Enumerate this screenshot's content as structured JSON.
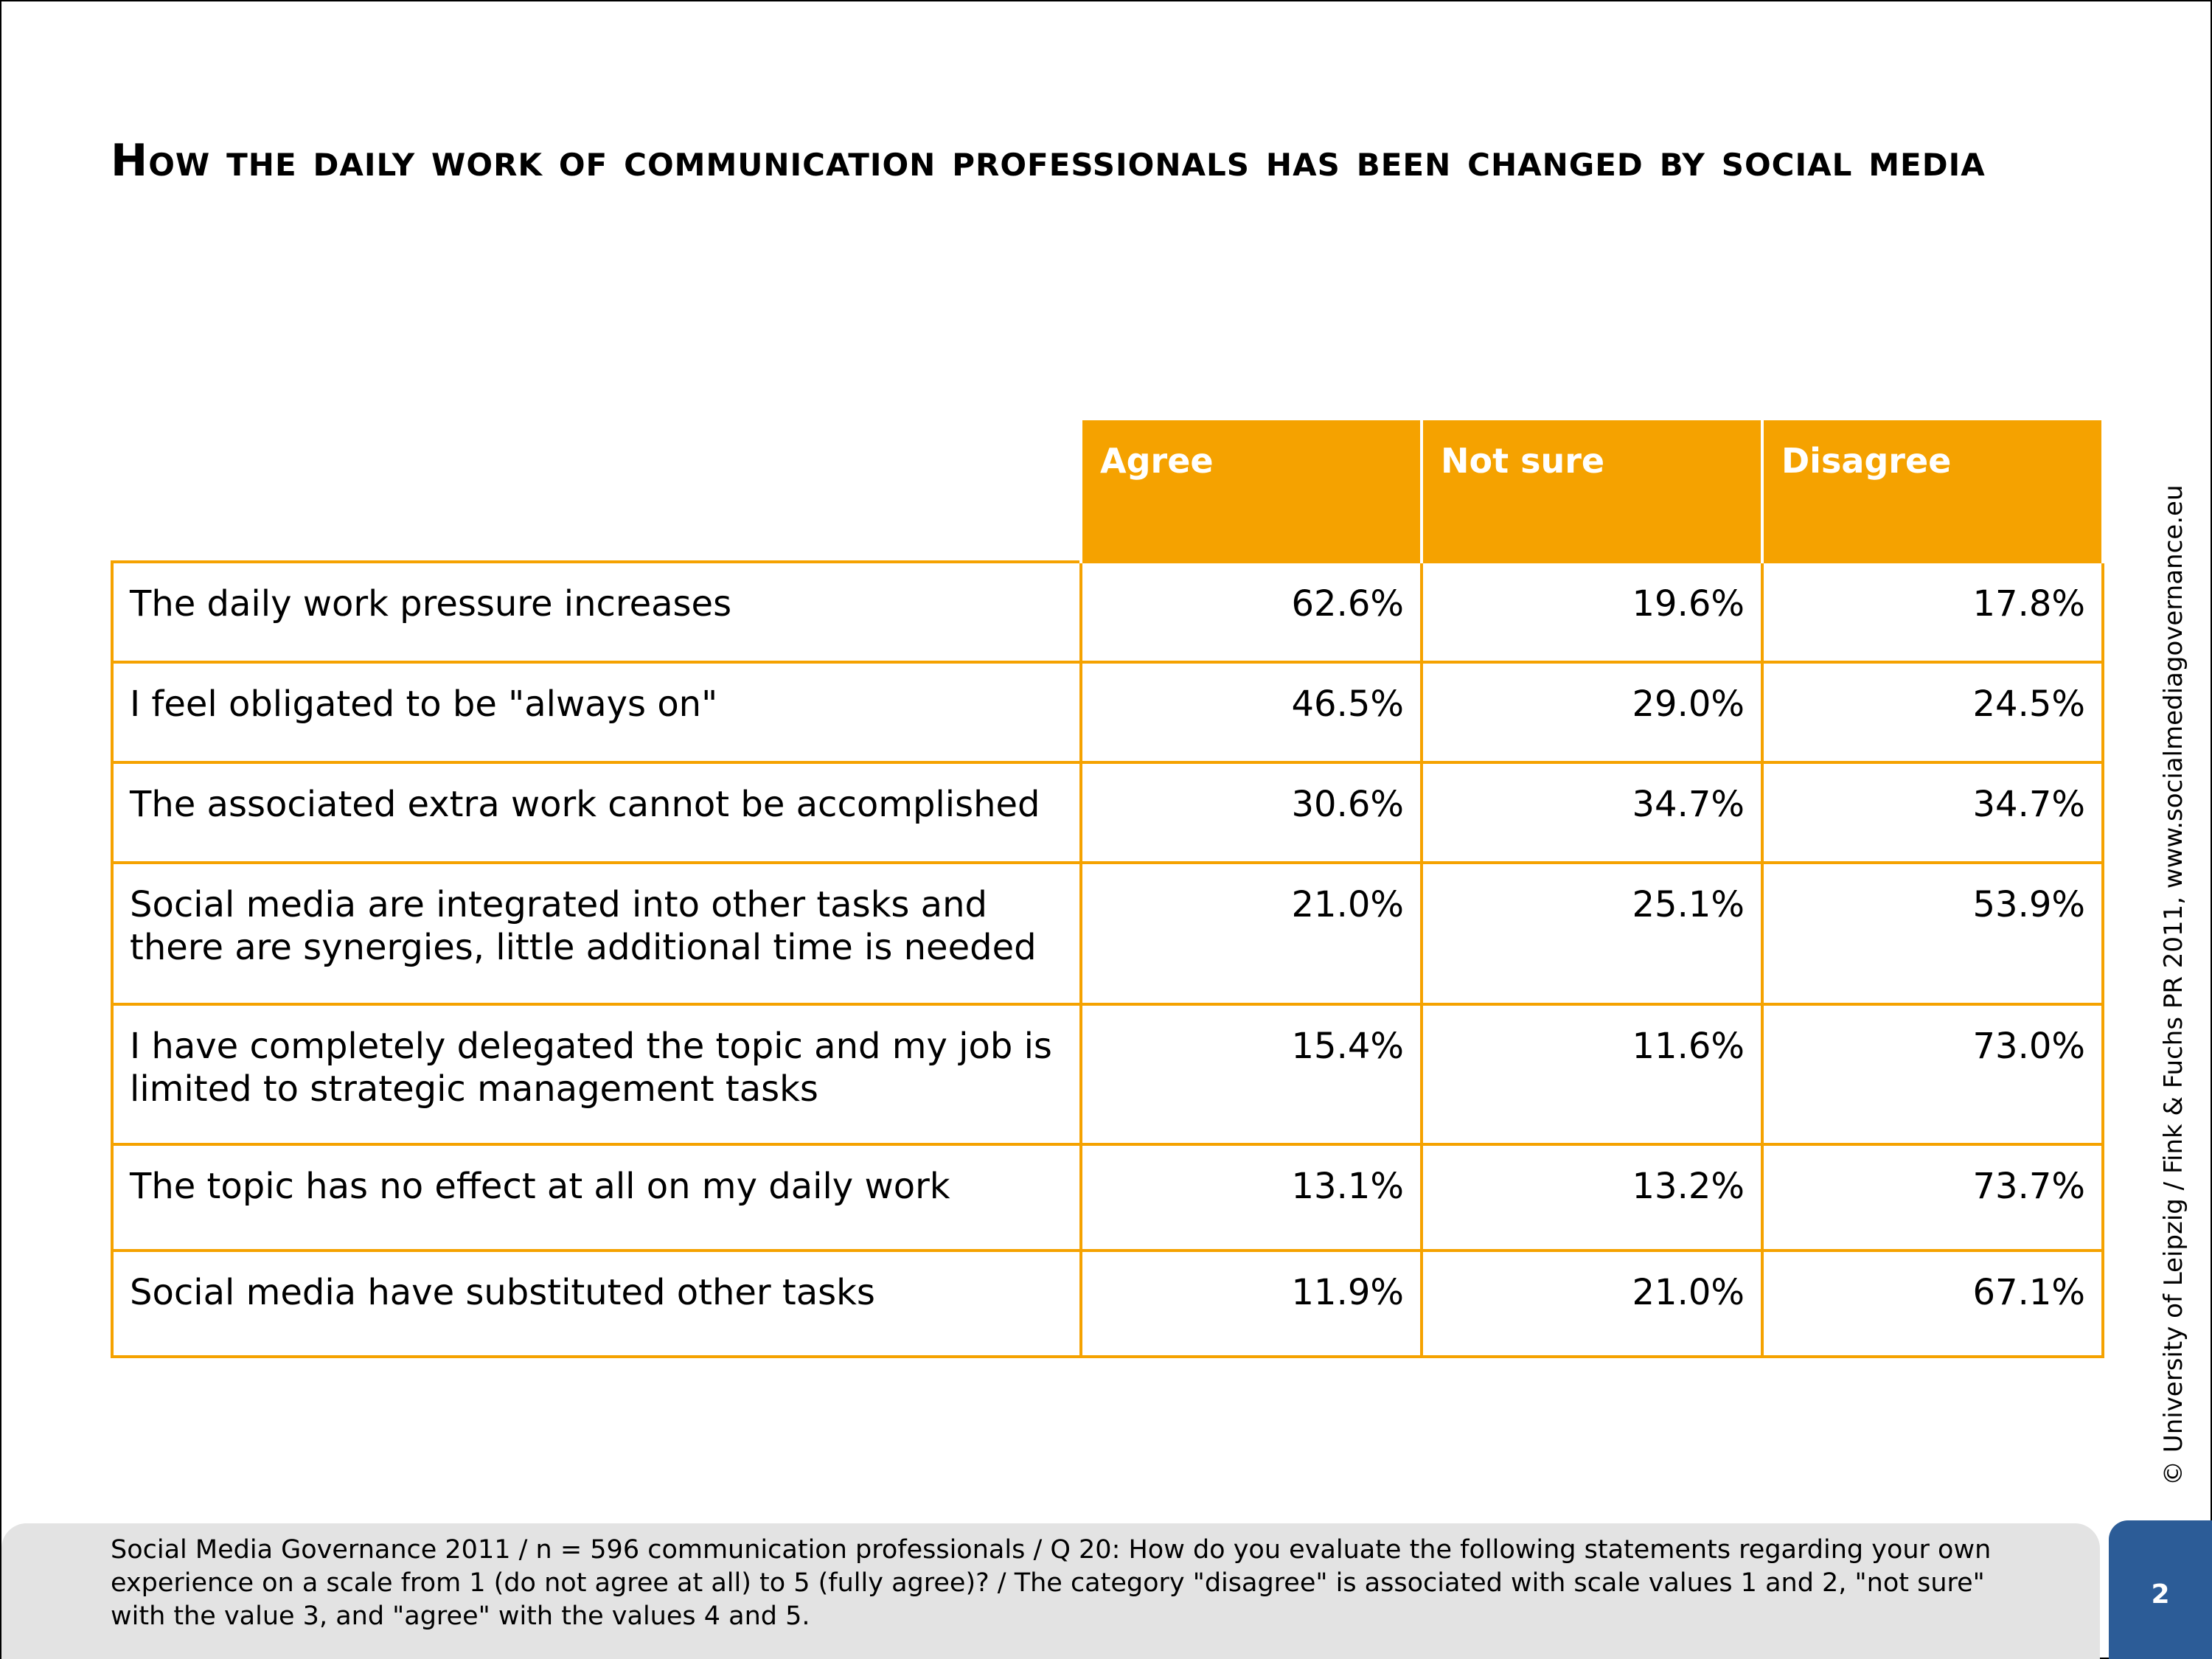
{
  "title": "How the daily work of communication professionals has been changed by social media",
  "table": {
    "headers": [
      "Agree",
      "Not sure",
      "Disagree"
    ],
    "rows": [
      {
        "label": "The daily work pressure increases",
        "agree": "62.6%",
        "not_sure": "19.6%",
        "disagree": "17.8%"
      },
      {
        "label": "I feel obligated to be \"always on\"",
        "agree": "46.5%",
        "not_sure": "29.0%",
        "disagree": "24.5%"
      },
      {
        "label": "The associated extra work cannot be accomplished",
        "agree": "30.6%",
        "not_sure": "34.7%",
        "disagree": "34.7%"
      },
      {
        "label": "Social media are integrated into other tasks and there are synergies, little additional time is needed",
        "agree": "21.0%",
        "not_sure": "25.1%",
        "disagree": "53.9%"
      },
      {
        "label": "I have completely delegated the topic and my job is limited to strategic management tasks",
        "agree": "15.4%",
        "not_sure": "11.6%",
        "disagree": "73.0%"
      },
      {
        "label": "The topic has no effect at all on my daily work",
        "agree": "13.1%",
        "not_sure": "13.2%",
        "disagree": "73.7%"
      },
      {
        "label": "Social media have substituted other tasks",
        "agree": "11.9%",
        "not_sure": "21.0%",
        "disagree": "67.1%"
      }
    ]
  },
  "copyright": "© University of Leipzig / Fink & Fuchs PR 2011, www.socialmediagovernance.eu",
  "footnote": "Social Media Governance 2011 / n = 596 communication professionals / Q 20: How do you evaluate the following statements regarding your own experience on a scale from 1 (do not agree at all) to 5 (fully agree)? / The category \"disagree\" is associated with scale values 1 and 2, \"not sure\" with the value 3, and \"agree\" with the values 4 and 5.",
  "page_number": "2",
  "colors": {
    "accent": "#F5A200",
    "page_box": "#2C5C97",
    "footnote_bg": "#E3E3E3"
  }
}
